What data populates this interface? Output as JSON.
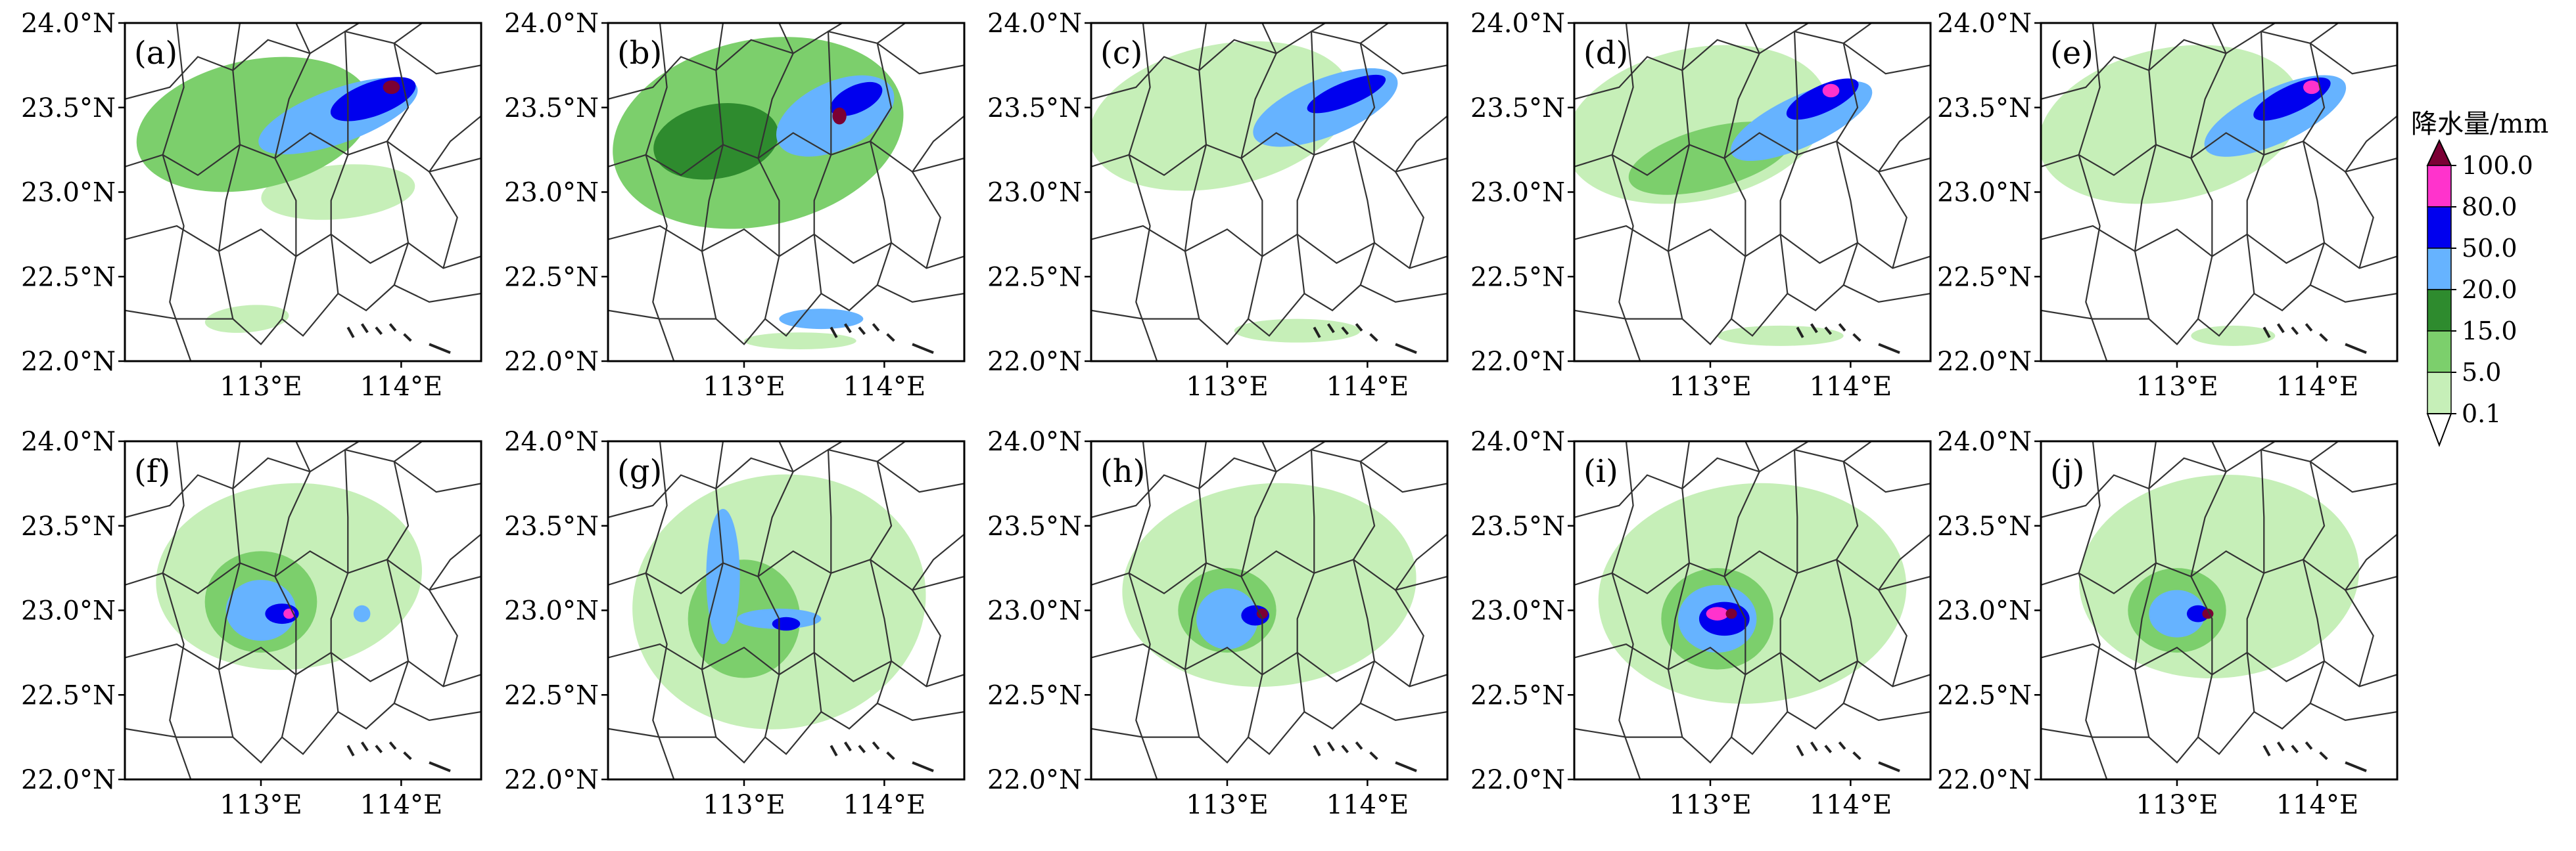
{
  "map": {
    "lat_ticks": [
      "22.0°N",
      "22.5°N",
      "23.0°N",
      "23.5°N",
      "24.0°N"
    ],
    "lon_ticks": [
      "113°E",
      "114°E"
    ],
    "lat_range": [
      22.0,
      24.0
    ],
    "lon_range": [
      112.03,
      114.57
    ],
    "panels": [
      {
        "label": "(a)",
        "blobs": [
          {
            "lon": 112.95,
            "lat": 23.4,
            "rx": 0.85,
            "ry": 0.38,
            "rot": -12,
            "level": 2
          },
          {
            "lon": 113.55,
            "lat": 23.45,
            "rx": 0.6,
            "ry": 0.16,
            "rot": -20,
            "level": 4
          },
          {
            "lon": 113.8,
            "lat": 23.55,
            "rx": 0.32,
            "ry": 0.1,
            "rot": -20,
            "level": 5
          },
          {
            "lon": 113.55,
            "lat": 23.0,
            "rx": 0.55,
            "ry": 0.16,
            "rot": -5,
            "level": 1
          },
          {
            "lon": 112.9,
            "lat": 22.25,
            "rx": 0.3,
            "ry": 0.08,
            "rot": -5,
            "level": 1
          },
          {
            "lon": 113.93,
            "lat": 23.62,
            "rx": 0.06,
            "ry": 0.04,
            "rot": 0,
            "level": 7
          }
        ]
      },
      {
        "label": "(b)",
        "blobs": [
          {
            "lon": 113.1,
            "lat": 23.35,
            "rx": 1.05,
            "ry": 0.55,
            "rot": -12,
            "level": 2
          },
          {
            "lon": 112.8,
            "lat": 23.3,
            "rx": 0.45,
            "ry": 0.22,
            "rot": -10,
            "level": 3
          },
          {
            "lon": 113.65,
            "lat": 23.45,
            "rx": 0.45,
            "ry": 0.2,
            "rot": -25,
            "level": 4
          },
          {
            "lon": 113.8,
            "lat": 23.55,
            "rx": 0.2,
            "ry": 0.08,
            "rot": -25,
            "level": 5
          },
          {
            "lon": 113.55,
            "lat": 22.25,
            "rx": 0.3,
            "ry": 0.06,
            "rot": 0,
            "level": 4
          },
          {
            "lon": 113.4,
            "lat": 22.12,
            "rx": 0.4,
            "ry": 0.05,
            "rot": 0,
            "level": 1
          },
          {
            "lon": 113.68,
            "lat": 23.45,
            "rx": 0.05,
            "ry": 0.05,
            "rot": 0,
            "level": 7
          }
        ]
      },
      {
        "label": "(c)",
        "blobs": [
          {
            "lon": 112.95,
            "lat": 23.45,
            "rx": 0.95,
            "ry": 0.42,
            "rot": -12,
            "level": 1
          },
          {
            "lon": 113.7,
            "lat": 23.5,
            "rx": 0.55,
            "ry": 0.17,
            "rot": -22,
            "level": 4
          },
          {
            "lon": 113.85,
            "lat": 23.58,
            "rx": 0.3,
            "ry": 0.07,
            "rot": -22,
            "level": 5
          },
          {
            "lon": 113.5,
            "lat": 22.18,
            "rx": 0.45,
            "ry": 0.07,
            "rot": 0,
            "level": 1
          }
        ]
      },
      {
        "label": "(d)",
        "blobs": [
          {
            "lon": 112.9,
            "lat": 23.4,
            "rx": 0.95,
            "ry": 0.45,
            "rot": -12,
            "level": 1
          },
          {
            "lon": 113.0,
            "lat": 23.2,
            "rx": 0.6,
            "ry": 0.18,
            "rot": -15,
            "level": 2
          },
          {
            "lon": 113.65,
            "lat": 23.42,
            "rx": 0.55,
            "ry": 0.15,
            "rot": -25,
            "level": 4
          },
          {
            "lon": 113.8,
            "lat": 23.55,
            "rx": 0.28,
            "ry": 0.08,
            "rot": -25,
            "level": 5
          },
          {
            "lon": 113.5,
            "lat": 22.15,
            "rx": 0.45,
            "ry": 0.06,
            "rot": 0,
            "level": 1
          },
          {
            "lon": 113.86,
            "lat": 23.6,
            "rx": 0.06,
            "ry": 0.04,
            "rot": 0,
            "level": 6
          }
        ]
      },
      {
        "label": "(e)",
        "blobs": [
          {
            "lon": 112.95,
            "lat": 23.4,
            "rx": 0.95,
            "ry": 0.45,
            "rot": -12,
            "level": 1
          },
          {
            "lon": 113.7,
            "lat": 23.45,
            "rx": 0.55,
            "ry": 0.16,
            "rot": -25,
            "level": 4
          },
          {
            "lon": 113.82,
            "lat": 23.55,
            "rx": 0.3,
            "ry": 0.08,
            "rot": -25,
            "level": 5
          },
          {
            "lon": 113.4,
            "lat": 22.15,
            "rx": 0.3,
            "ry": 0.06,
            "rot": 0,
            "level": 1
          },
          {
            "lon": 113.96,
            "lat": 23.62,
            "rx": 0.06,
            "ry": 0.04,
            "rot": 0,
            "level": 6
          }
        ]
      },
      {
        "label": "(f)",
        "blobs": [
          {
            "lon": 113.2,
            "lat": 23.2,
            "rx": 0.95,
            "ry": 0.55,
            "rot": -5,
            "level": 1
          },
          {
            "lon": 113.0,
            "lat": 23.05,
            "rx": 0.4,
            "ry": 0.3,
            "rot": 0,
            "level": 2
          },
          {
            "lon": 113.0,
            "lat": 23.0,
            "rx": 0.25,
            "ry": 0.18,
            "rot": 0,
            "level": 4
          },
          {
            "lon": 113.15,
            "lat": 22.98,
            "rx": 0.12,
            "ry": 0.06,
            "rot": 0,
            "level": 5
          },
          {
            "lon": 113.72,
            "lat": 22.98,
            "rx": 0.06,
            "ry": 0.05,
            "rot": 0,
            "level": 4
          },
          {
            "lon": 113.2,
            "lat": 22.98,
            "rx": 0.04,
            "ry": 0.03,
            "rot": 0,
            "level": 6
          }
        ]
      },
      {
        "label": "(g)",
        "blobs": [
          {
            "lon": 113.25,
            "lat": 23.05,
            "rx": 1.05,
            "ry": 0.75,
            "rot": -10,
            "level": 1
          },
          {
            "lon": 113.0,
            "lat": 22.95,
            "rx": 0.4,
            "ry": 0.35,
            "rot": 0,
            "level": 2
          },
          {
            "lon": 112.85,
            "lat": 23.2,
            "rx": 0.12,
            "ry": 0.4,
            "rot": 0,
            "level": 4
          },
          {
            "lon": 113.25,
            "lat": 22.95,
            "rx": 0.3,
            "ry": 0.06,
            "rot": 0,
            "level": 4
          },
          {
            "lon": 113.3,
            "lat": 22.92,
            "rx": 0.1,
            "ry": 0.04,
            "rot": 0,
            "level": 5
          }
        ]
      },
      {
        "label": "(h)",
        "blobs": [
          {
            "lon": 113.3,
            "lat": 23.15,
            "rx": 1.05,
            "ry": 0.6,
            "rot": -5,
            "level": 1
          },
          {
            "lon": 113.0,
            "lat": 23.0,
            "rx": 0.35,
            "ry": 0.25,
            "rot": 0,
            "level": 2
          },
          {
            "lon": 113.0,
            "lat": 22.95,
            "rx": 0.22,
            "ry": 0.18,
            "rot": 0,
            "level": 4
          },
          {
            "lon": 113.2,
            "lat": 22.97,
            "rx": 0.1,
            "ry": 0.06,
            "rot": 0,
            "level": 5
          },
          {
            "lon": 113.25,
            "lat": 22.98,
            "rx": 0.04,
            "ry": 0.03,
            "rot": 0,
            "level": 7
          }
        ]
      },
      {
        "label": "(i)",
        "blobs": [
          {
            "lon": 113.3,
            "lat": 23.1,
            "rx": 1.1,
            "ry": 0.65,
            "rot": -5,
            "level": 1
          },
          {
            "lon": 113.05,
            "lat": 22.95,
            "rx": 0.4,
            "ry": 0.3,
            "rot": 0,
            "level": 2
          },
          {
            "lon": 113.05,
            "lat": 22.95,
            "rx": 0.28,
            "ry": 0.2,
            "rot": 0,
            "level": 4
          },
          {
            "lon": 113.1,
            "lat": 22.95,
            "rx": 0.18,
            "ry": 0.1,
            "rot": 0,
            "level": 5
          },
          {
            "lon": 113.05,
            "lat": 22.98,
            "rx": 0.08,
            "ry": 0.04,
            "rot": 0,
            "level": 6
          },
          {
            "lon": 113.15,
            "lat": 22.98,
            "rx": 0.04,
            "ry": 0.03,
            "rot": 0,
            "level": 7
          }
        ]
      },
      {
        "label": "(j)",
        "blobs": [
          {
            "lon": 113.3,
            "lat": 23.2,
            "rx": 1.0,
            "ry": 0.6,
            "rot": -5,
            "level": 1
          },
          {
            "lon": 113.0,
            "lat": 23.0,
            "rx": 0.35,
            "ry": 0.25,
            "rot": 0,
            "level": 2
          },
          {
            "lon": 113.0,
            "lat": 22.98,
            "rx": 0.2,
            "ry": 0.14,
            "rot": 0,
            "level": 4
          },
          {
            "lon": 113.15,
            "lat": 22.98,
            "rx": 0.08,
            "ry": 0.05,
            "rot": 0,
            "level": 5
          },
          {
            "lon": 113.22,
            "lat": 22.98,
            "rx": 0.04,
            "ry": 0.03,
            "rot": 0,
            "level": 7
          }
        ]
      }
    ]
  },
  "colorbar": {
    "title": "降水量/mm",
    "levels": [
      "100.0",
      "80.0",
      "50.0",
      "20.0",
      "15.0",
      "5.0",
      "0.1"
    ],
    "colors": [
      "#7b0034",
      "#ff33cc",
      "#0000ee",
      "#66b3ff",
      "#2e8b2e",
      "#7ccf6c",
      "#c6efb8",
      "#ffffff"
    ]
  }
}
